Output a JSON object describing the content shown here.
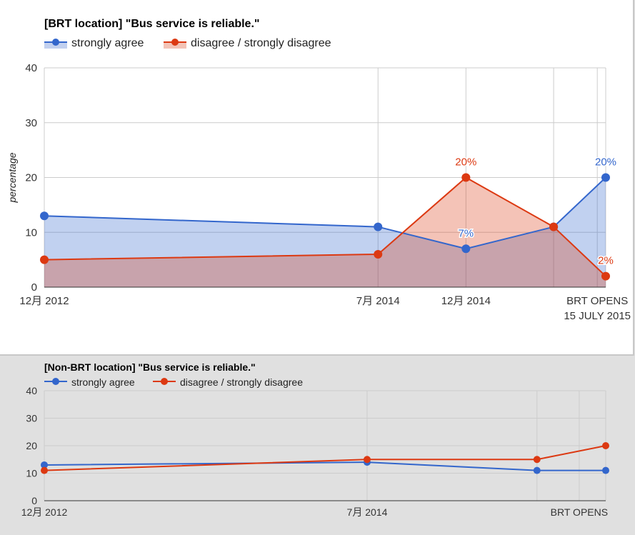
{
  "charts": [
    {
      "title": "[BRT location] \"Bus service is reliable.\"",
      "ylabel": "percentage",
      "legend": [
        "strongly agree",
        "disagree / strongly disagree"
      ]
    },
    {
      "title": "[Non-BRT location] \"Bus service is reliable.\"",
      "ylabel": "",
      "legend": [
        "strongly agree",
        "disagree / strongly disagree"
      ]
    }
  ],
  "colors": {
    "strongly_agree": "#3366cc",
    "disagree": "#dc3912",
    "agree_fill": "#c2d0ef",
    "disagree_fill": "#f3c3b6",
    "overlap_fill": "#c7a2a9",
    "grid": "#cccccc",
    "axis": "#333333"
  },
  "chart_data": [
    {
      "type": "area",
      "title": "[BRT location] \"Bus service is reliable.\"",
      "ylabel": "percentage",
      "x_ticks": [
        {
          "label": "12月 2012",
          "x": 2012.917
        },
        {
          "label": "7月 2014",
          "x": 2014.5
        },
        {
          "label": "12月 2014",
          "x": 2014.917
        },
        {
          "label": "BRT OPENS",
          "label2": "15 JULY 2015",
          "x": 2015.54
        }
      ],
      "x_grid": [
        2014.5,
        2014.917,
        2015.333,
        2015.54,
        2015.58
      ],
      "xlim": [
        2012.917,
        2015.58
      ],
      "ylim": [
        0,
        40
      ],
      "yticks": [
        0,
        10,
        20,
        30,
        40
      ],
      "series": [
        {
          "name": "strongly agree",
          "x": [
            2012.917,
            2014.5,
            2014.917,
            2015.333,
            2015.58
          ],
          "values": [
            13,
            11,
            7,
            11,
            20
          ],
          "labels": [
            "",
            "",
            "7%",
            "",
            "20%"
          ]
        },
        {
          "name": "disagree / strongly disagree",
          "x": [
            2012.917,
            2014.5,
            2014.917,
            2015.333,
            2015.58
          ],
          "values": [
            5,
            6,
            20,
            11,
            2
          ],
          "labels": [
            "",
            "",
            "20%",
            "",
            "2%"
          ]
        }
      ],
      "legend_position": "top",
      "grid": true
    },
    {
      "type": "line",
      "title": "[Non-BRT location] \"Bus service is reliable.\"",
      "x_ticks": [
        {
          "label": "12月 2012",
          "x": 2012.917
        },
        {
          "label": "7月 2014",
          "x": 2014.5
        },
        {
          "label": "BRT OPENS",
          "x": 2015.54
        }
      ],
      "x_grid": [
        2014.5,
        2015.333,
        2015.54,
        2015.67
      ],
      "xlim": [
        2012.917,
        2015.67
      ],
      "ylim": [
        0,
        40
      ],
      "yticks": [
        0,
        10,
        20,
        30,
        40
      ],
      "series": [
        {
          "name": "strongly agree",
          "x": [
            2012.917,
            2014.5,
            2015.333,
            2015.67
          ],
          "values": [
            13,
            14,
            11,
            11
          ]
        },
        {
          "name": "disagree / strongly disagree",
          "x": [
            2012.917,
            2014.5,
            2015.333,
            2015.67
          ],
          "values": [
            11,
            15,
            15,
            20
          ]
        }
      ],
      "legend_position": "top",
      "grid": true
    }
  ]
}
